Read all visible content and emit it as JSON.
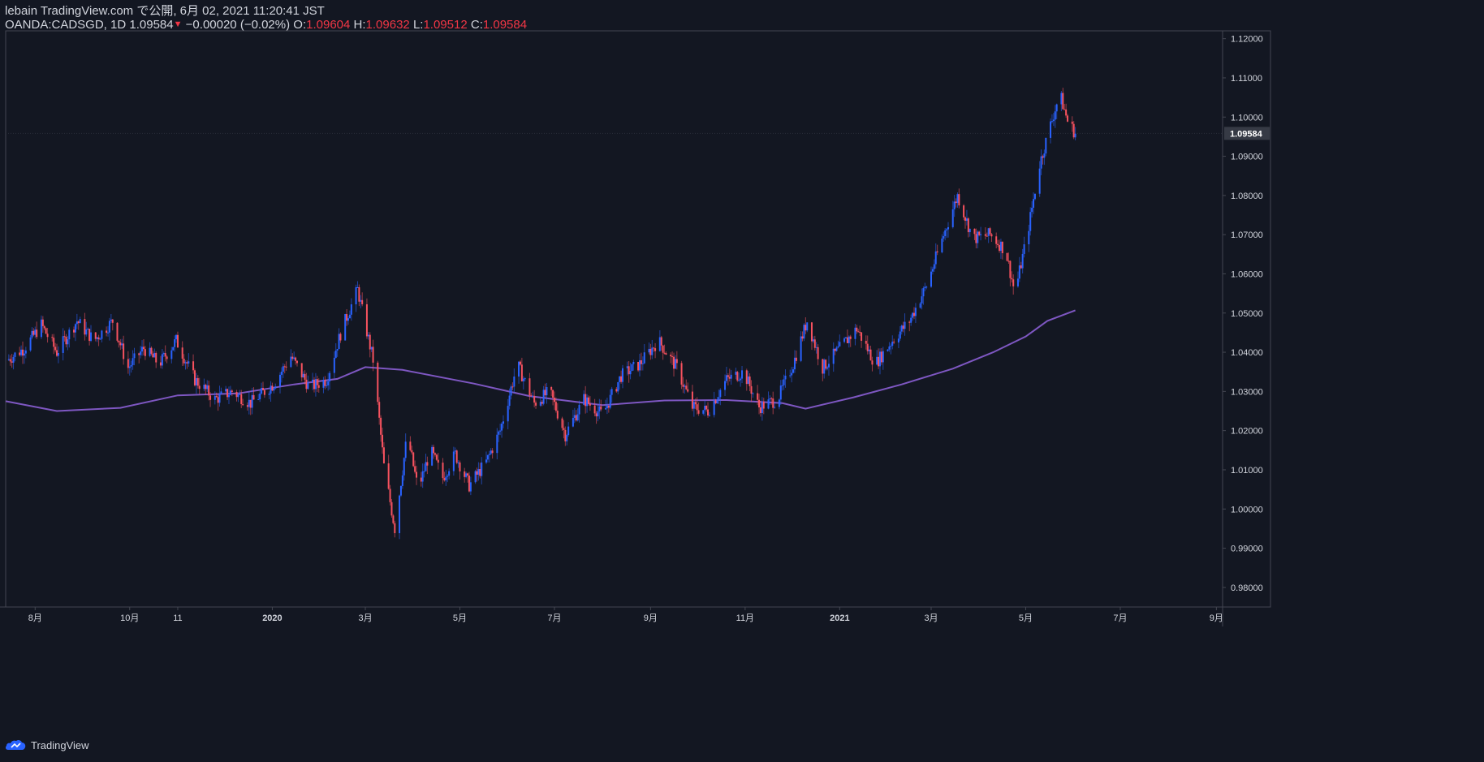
{
  "header": {
    "line1": "lebain TradingView.com で公開, 6月 02, 2021 11:20:41 JST",
    "symbol": "OANDA:CADSGD, 1D",
    "last": "1.09584",
    "change": "−0.00020 (−0.02%)",
    "o_label": "O:",
    "o_value": "1.09604",
    "h_label": "H:",
    "h_value": "1.09632",
    "l_label": "L:",
    "l_value": "1.09512",
    "c_label": "C:",
    "c_value": "1.09584"
  },
  "footer": {
    "brand": "TradingView"
  },
  "colors": {
    "background": "#131722",
    "up": "#2962ff",
    "down": "#f7525f",
    "ma": "#7e57c2",
    "axis_text": "#d1d4dc",
    "border": "#434651"
  },
  "chart_data": {
    "type": "candlestick",
    "symbol": "OANDA:CADSGD",
    "interval": "1D",
    "ylim": [
      0.975,
      1.122
    ],
    "yticks": [
      "1.12000",
      "1.11000",
      "1.10000",
      "1.09000",
      "1.08000",
      "1.07000",
      "1.06000",
      "1.05000",
      "1.04000",
      "1.03000",
      "1.02000",
      "1.01000",
      "1.00000",
      "0.99000",
      "0.98000"
    ],
    "last_price_label": "1.09584",
    "xticks": [
      {
        "label": "8月",
        "date": "2019-08-01"
      },
      {
        "label": "10月",
        "date": "2019-10-01"
      },
      {
        "label": "11",
        "date": "2019-11-01"
      },
      {
        "label": "2020",
        "date": "2020-01-01"
      },
      {
        "label": "3月",
        "date": "2020-03-01"
      },
      {
        "label": "5月",
        "date": "2020-05-01"
      },
      {
        "label": "7月",
        "date": "2020-07-01"
      },
      {
        "label": "9月",
        "date": "2020-09-01"
      },
      {
        "label": "11月",
        "date": "2020-11-01"
      },
      {
        "label": "2021",
        "date": "2021-01-01"
      },
      {
        "label": "3月",
        "date": "2021-03-01"
      },
      {
        "label": "5月",
        "date": "2021-05-01"
      },
      {
        "label": "7月",
        "date": "2021-07-01"
      },
      {
        "label": "9月",
        "date": "2021-09-01"
      }
    ],
    "xlim": [
      "2019-07-13",
      "2021-09-05"
    ],
    "price_path": [
      {
        "date": "2019-07-14",
        "close": 1.038
      },
      {
        "date": "2019-07-25",
        "close": 1.041
      },
      {
        "date": "2019-08-05",
        "close": 1.047
      },
      {
        "date": "2019-08-15",
        "close": 1.04
      },
      {
        "date": "2019-08-28",
        "close": 1.048
      },
      {
        "date": "2019-09-08",
        "close": 1.043
      },
      {
        "date": "2019-09-20",
        "close": 1.048
      },
      {
        "date": "2019-09-30",
        "close": 1.036
      },
      {
        "date": "2019-10-10",
        "close": 1.041
      },
      {
        "date": "2019-10-20",
        "close": 1.037
      },
      {
        "date": "2019-10-31",
        "close": 1.043
      },
      {
        "date": "2019-11-12",
        "close": 1.033
      },
      {
        "date": "2019-11-25",
        "close": 1.028
      },
      {
        "date": "2019-12-06",
        "close": 1.03
      },
      {
        "date": "2019-12-18",
        "close": 1.027
      },
      {
        "date": "2020-01-02",
        "close": 1.032
      },
      {
        "date": "2020-01-13",
        "close": 1.039
      },
      {
        "date": "2020-01-25",
        "close": 1.031
      },
      {
        "date": "2020-02-05",
        "close": 1.033
      },
      {
        "date": "2020-02-15",
        "close": 1.046
      },
      {
        "date": "2020-02-25",
        "close": 1.056
      },
      {
        "date": "2020-03-06",
        "close": 1.038
      },
      {
        "date": "2020-03-13",
        "close": 1.011
      },
      {
        "date": "2020-03-20",
        "close": 0.995
      },
      {
        "date": "2020-03-28",
        "close": 1.019
      },
      {
        "date": "2020-04-04",
        "close": 1.005
      },
      {
        "date": "2020-04-12",
        "close": 1.015
      },
      {
        "date": "2020-04-20",
        "close": 1.008
      },
      {
        "date": "2020-04-28",
        "close": 1.014
      },
      {
        "date": "2020-05-07",
        "close": 1.006
      },
      {
        "date": "2020-05-18",
        "close": 1.012
      },
      {
        "date": "2020-05-27",
        "close": 1.02
      },
      {
        "date": "2020-06-07",
        "close": 1.037
      },
      {
        "date": "2020-06-18",
        "close": 1.027
      },
      {
        "date": "2020-06-28",
        "close": 1.03
      },
      {
        "date": "2020-07-08",
        "close": 1.019
      },
      {
        "date": "2020-07-20",
        "close": 1.028
      },
      {
        "date": "2020-08-01",
        "close": 1.024
      },
      {
        "date": "2020-08-13",
        "close": 1.034
      },
      {
        "date": "2020-08-25",
        "close": 1.037
      },
      {
        "date": "2020-09-06",
        "close": 1.043
      },
      {
        "date": "2020-09-18",
        "close": 1.036
      },
      {
        "date": "2020-09-28",
        "close": 1.026
      },
      {
        "date": "2020-10-08",
        "close": 1.025
      },
      {
        "date": "2020-10-20",
        "close": 1.033
      },
      {
        "date": "2020-10-31",
        "close": 1.035
      },
      {
        "date": "2020-11-10",
        "close": 1.026
      },
      {
        "date": "2020-11-22",
        "close": 1.028
      },
      {
        "date": "2020-12-02",
        "close": 1.037
      },
      {
        "date": "2020-12-11",
        "close": 1.048
      },
      {
        "date": "2020-12-21",
        "close": 1.036
      },
      {
        "date": "2021-01-01",
        "close": 1.041
      },
      {
        "date": "2021-01-12",
        "close": 1.046
      },
      {
        "date": "2021-01-24",
        "close": 1.037
      },
      {
        "date": "2021-02-04",
        "close": 1.043
      },
      {
        "date": "2021-02-15",
        "close": 1.048
      },
      {
        "date": "2021-02-26",
        "close": 1.057
      },
      {
        "date": "2021-03-10",
        "close": 1.071
      },
      {
        "date": "2021-03-18",
        "close": 1.08
      },
      {
        "date": "2021-03-28",
        "close": 1.069
      },
      {
        "date": "2021-04-08",
        "close": 1.07
      },
      {
        "date": "2021-04-18",
        "close": 1.066
      },
      {
        "date": "2021-04-24",
        "close": 1.055
      },
      {
        "date": "2021-05-02",
        "close": 1.07
      },
      {
        "date": "2021-05-10",
        "close": 1.088
      },
      {
        "date": "2021-05-17",
        "close": 1.098
      },
      {
        "date": "2021-05-23",
        "close": 1.106
      },
      {
        "date": "2021-05-28",
        "close": 1.099
      },
      {
        "date": "2021-06-02",
        "close": 1.09584
      }
    ],
    "ma_path": [
      {
        "date": "2019-07-13",
        "value": 1.0275
      },
      {
        "date": "2019-08-15",
        "value": 1.025
      },
      {
        "date": "2019-09-25",
        "value": 1.0258
      },
      {
        "date": "2019-11-01",
        "value": 1.029
      },
      {
        "date": "2019-12-10",
        "value": 1.0295
      },
      {
        "date": "2020-01-15",
        "value": 1.0318
      },
      {
        "date": "2020-02-12",
        "value": 1.0332
      },
      {
        "date": "2020-03-01",
        "value": 1.0362
      },
      {
        "date": "2020-03-25",
        "value": 1.0355
      },
      {
        "date": "2020-05-10",
        "value": 1.032
      },
      {
        "date": "2020-06-15",
        "value": 1.0288
      },
      {
        "date": "2020-08-01",
        "value": 1.0265
      },
      {
        "date": "2020-09-10",
        "value": 1.0277
      },
      {
        "date": "2020-10-20",
        "value": 1.0278
      },
      {
        "date": "2020-11-25",
        "value": 1.027
      },
      {
        "date": "2020-12-10",
        "value": 1.0256
      },
      {
        "date": "2021-01-10",
        "value": 1.0285
      },
      {
        "date": "2021-02-10",
        "value": 1.0318
      },
      {
        "date": "2021-03-15",
        "value": 1.0358
      },
      {
        "date": "2021-04-10",
        "value": 1.04
      },
      {
        "date": "2021-05-01",
        "value": 1.044
      },
      {
        "date": "2021-05-15",
        "value": 1.048
      },
      {
        "date": "2021-06-02",
        "value": 1.0507
      }
    ]
  }
}
